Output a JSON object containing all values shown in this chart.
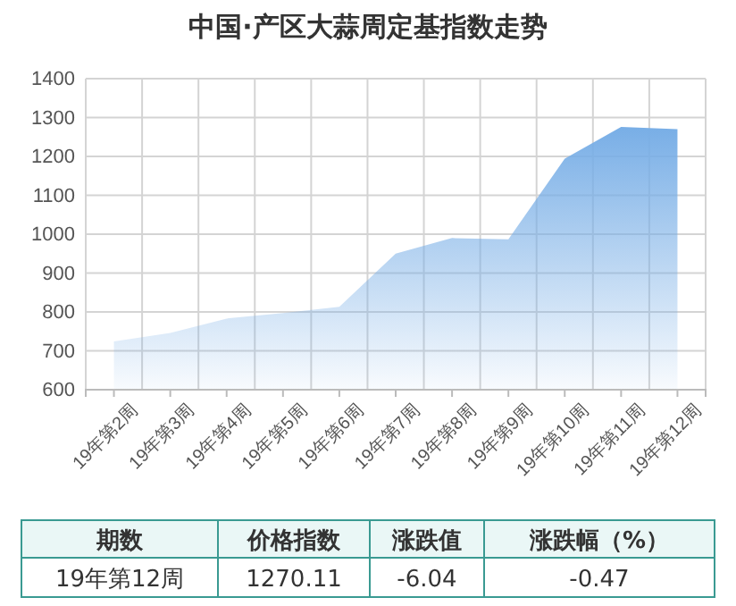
{
  "chart_data": {
    "type": "area",
    "title": "中国·产区大蒜周定基指数走势",
    "categories": [
      "19年第2周",
      "19年第3周",
      "19年第4周",
      "19年第5周",
      "19年第6周",
      "19年第7周",
      "19年第8周",
      "19年第9周",
      "19年第10周",
      "19年第11周",
      "19年第12周"
    ],
    "series": [
      {
        "color": "#78aee6",
        "values": [
          724,
          746,
          783,
          797,
          813,
          950,
          990,
          987,
          1194,
          1276,
          1270
        ]
      }
    ],
    "ylim": [
      600,
      1400
    ],
    "yticks": [
      600,
      700,
      800,
      900,
      1000,
      1100,
      1200,
      1300,
      1400
    ],
    "grid": true,
    "annotations": [
      "期数",
      "价格指数",
      "涨跌值",
      "涨跌幅（%）",
      "19年第12周",
      "1270.11",
      "-6.04",
      "-0.47"
    ]
  }
}
